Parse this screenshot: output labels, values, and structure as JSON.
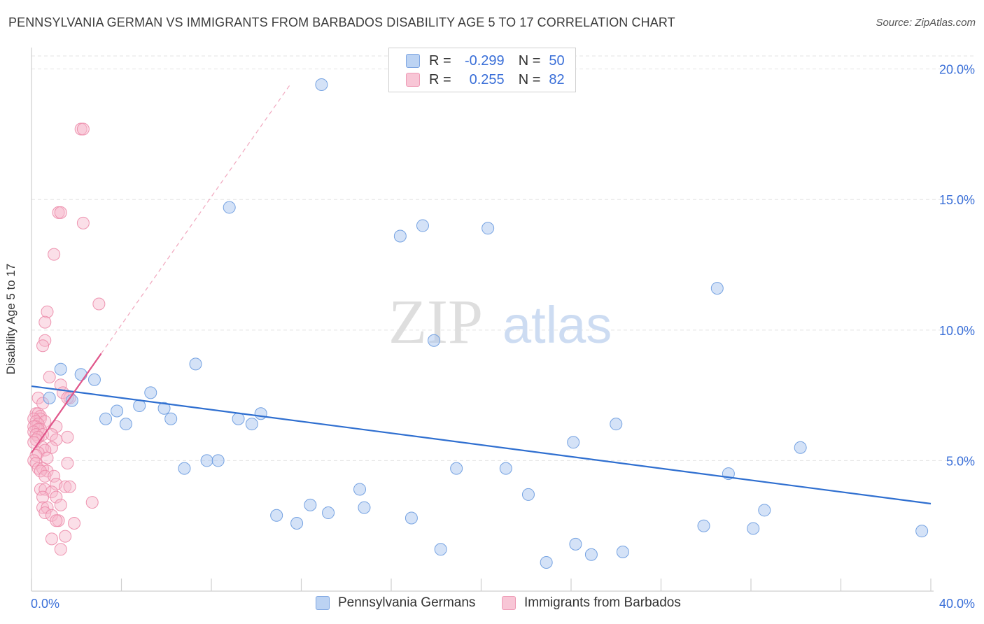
{
  "title": "PENNSYLVANIA GERMAN VS IMMIGRANTS FROM BARBADOS DISABILITY AGE 5 TO 17 CORRELATION CHART",
  "source": "Source: ZipAtlas.com",
  "watermark": {
    "zip": "ZIP",
    "atlas": "atlas"
  },
  "legend_top": [
    {
      "r_label": "R =",
      "r_value": "-0.299",
      "n_label": "N =",
      "n_value": "50"
    },
    {
      "r_label": "R =",
      "r_value": "0.255",
      "n_label": "N =",
      "n_value": "82"
    }
  ],
  "colors": {
    "blue_fill": "#a9c5ef",
    "blue_stroke": "#6f9ee0",
    "blue_line": "#2f6fd0",
    "pink_fill": "#f6b8cb",
    "pink_stroke": "#ec8aa8",
    "pink_line": "#e0558a",
    "axis_label": "#3a6fd8",
    "grid": "#e3e3e3"
  },
  "chart_data": {
    "type": "scatter",
    "title": "PENNSYLVANIA GERMAN VS IMMIGRANTS FROM BARBADOS DISABILITY AGE 5 TO 17 CORRELATION CHART",
    "xlabel": "",
    "ylabel": "Disability Age 5 to 17",
    "xlim": [
      0,
      40
    ],
    "ylim": [
      0,
      20.5
    ],
    "x_tick_labels": [
      "0.0%",
      "40.0%"
    ],
    "y_ticks": [
      5,
      10,
      15,
      20
    ],
    "y_tick_labels": [
      "5.0%",
      "10.0%",
      "15.0%",
      "20.0%"
    ],
    "grid": true,
    "legend_position": "bottom",
    "series": [
      {
        "name": "Pennsylvania Germans",
        "color": "blue",
        "trend": {
          "x0": 0.0,
          "y0": 7.85,
          "x1": 40.0,
          "y1": 3.35,
          "dashed_extension": false
        },
        "points": [
          [
            12.9,
            19.4
          ],
          [
            8.8,
            14.7
          ],
          [
            16.4,
            13.6
          ],
          [
            17.4,
            14.0
          ],
          [
            20.3,
            13.9
          ],
          [
            30.5,
            11.6
          ],
          [
            17.9,
            9.6
          ],
          [
            1.3,
            8.5
          ],
          [
            2.2,
            8.3
          ],
          [
            2.8,
            8.1
          ],
          [
            7.3,
            8.7
          ],
          [
            0.8,
            7.4
          ],
          [
            1.8,
            7.3
          ],
          [
            5.3,
            7.6
          ],
          [
            4.8,
            7.1
          ],
          [
            3.8,
            6.9
          ],
          [
            3.3,
            6.6
          ],
          [
            5.9,
            7.0
          ],
          [
            4.2,
            6.4
          ],
          [
            6.2,
            6.6
          ],
          [
            9.2,
            6.6
          ],
          [
            10.2,
            6.8
          ],
          [
            9.8,
            6.4
          ],
          [
            24.1,
            5.7
          ],
          [
            26.0,
            6.4
          ],
          [
            34.2,
            5.5
          ],
          [
            6.8,
            4.7
          ],
          [
            7.8,
            5.0
          ],
          [
            8.3,
            5.0
          ],
          [
            18.9,
            4.7
          ],
          [
            21.1,
            4.7
          ],
          [
            31.0,
            4.5
          ],
          [
            14.6,
            3.9
          ],
          [
            22.1,
            3.7
          ],
          [
            12.4,
            3.3
          ],
          [
            13.2,
            3.0
          ],
          [
            14.8,
            3.2
          ],
          [
            10.9,
            2.9
          ],
          [
            11.8,
            2.6
          ],
          [
            16.9,
            2.8
          ],
          [
            29.9,
            2.5
          ],
          [
            32.1,
            2.4
          ],
          [
            32.6,
            3.1
          ],
          [
            39.6,
            2.3
          ],
          [
            18.2,
            1.6
          ],
          [
            24.2,
            1.8
          ],
          [
            24.9,
            1.4
          ],
          [
            26.3,
            1.5
          ],
          [
            22.9,
            1.1
          ]
        ]
      },
      {
        "name": "Immigrants from Barbados",
        "color": "pink",
        "trend": {
          "x0": 0.0,
          "y0": 5.3,
          "x1": 3.1,
          "y1": 9.1,
          "dashed_end_x": 11.5
        },
        "points": [
          [
            2.2,
            17.7
          ],
          [
            2.3,
            17.7
          ],
          [
            1.2,
            14.5
          ],
          [
            1.3,
            14.5
          ],
          [
            2.3,
            14.1
          ],
          [
            1.0,
            12.9
          ],
          [
            3.0,
            11.0
          ],
          [
            0.7,
            10.7
          ],
          [
            0.6,
            10.3
          ],
          [
            0.6,
            9.6
          ],
          [
            0.5,
            9.4
          ],
          [
            0.8,
            8.2
          ],
          [
            1.3,
            7.9
          ],
          [
            1.4,
            7.6
          ],
          [
            1.7,
            7.4
          ],
          [
            1.6,
            7.4
          ],
          [
            0.3,
            7.4
          ],
          [
            0.5,
            7.2
          ],
          [
            0.2,
            6.8
          ],
          [
            0.3,
            6.8
          ],
          [
            0.4,
            6.7
          ],
          [
            0.4,
            6.6
          ],
          [
            0.1,
            6.6
          ],
          [
            0.2,
            6.5
          ],
          [
            0.6,
            6.5
          ],
          [
            0.3,
            6.4
          ],
          [
            0.2,
            6.3
          ],
          [
            0.1,
            6.3
          ],
          [
            1.1,
            6.3
          ],
          [
            0.4,
            6.2
          ],
          [
            0.3,
            6.2
          ],
          [
            0.1,
            6.1
          ],
          [
            0.2,
            6.0
          ],
          [
            0.5,
            6.0
          ],
          [
            0.9,
            6.0
          ],
          [
            1.6,
            5.9
          ],
          [
            0.3,
            5.9
          ],
          [
            0.2,
            5.8
          ],
          [
            1.1,
            5.8
          ],
          [
            0.1,
            5.7
          ],
          [
            0.5,
            5.5
          ],
          [
            0.9,
            5.5
          ],
          [
            0.6,
            5.4
          ],
          [
            0.3,
            5.3
          ],
          [
            0.2,
            5.2
          ],
          [
            0.7,
            5.1
          ],
          [
            0.1,
            5.0
          ],
          [
            0.2,
            4.9
          ],
          [
            1.6,
            4.9
          ],
          [
            0.3,
            4.7
          ],
          [
            0.5,
            4.7
          ],
          [
            0.7,
            4.6
          ],
          [
            0.4,
            4.6
          ],
          [
            0.6,
            4.4
          ],
          [
            1.0,
            4.4
          ],
          [
            1.1,
            4.1
          ],
          [
            0.4,
            3.9
          ],
          [
            0.6,
            3.9
          ],
          [
            1.5,
            4.0
          ],
          [
            1.7,
            4.0
          ],
          [
            0.9,
            3.8
          ],
          [
            0.5,
            3.6
          ],
          [
            1.1,
            3.6
          ],
          [
            2.7,
            3.4
          ],
          [
            1.3,
            3.3
          ],
          [
            0.5,
            3.2
          ],
          [
            0.7,
            3.2
          ],
          [
            0.6,
            3.0
          ],
          [
            0.9,
            2.9
          ],
          [
            1.2,
            2.7
          ],
          [
            1.1,
            2.7
          ],
          [
            1.9,
            2.6
          ],
          [
            1.5,
            2.1
          ],
          [
            0.9,
            2.0
          ],
          [
            1.3,
            1.6
          ]
        ]
      }
    ]
  }
}
